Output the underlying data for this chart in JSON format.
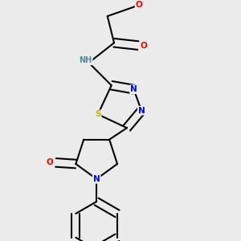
{
  "bg_color": "#ebebeb",
  "atom_colors": {
    "C": "#000000",
    "N": "#0000ff",
    "O": "#ff0000",
    "S": "#b8b800",
    "H": "#4a8f9a"
  },
  "bond_color": "#000000",
  "figsize": [
    3.0,
    3.0
  ],
  "dpi": 100
}
